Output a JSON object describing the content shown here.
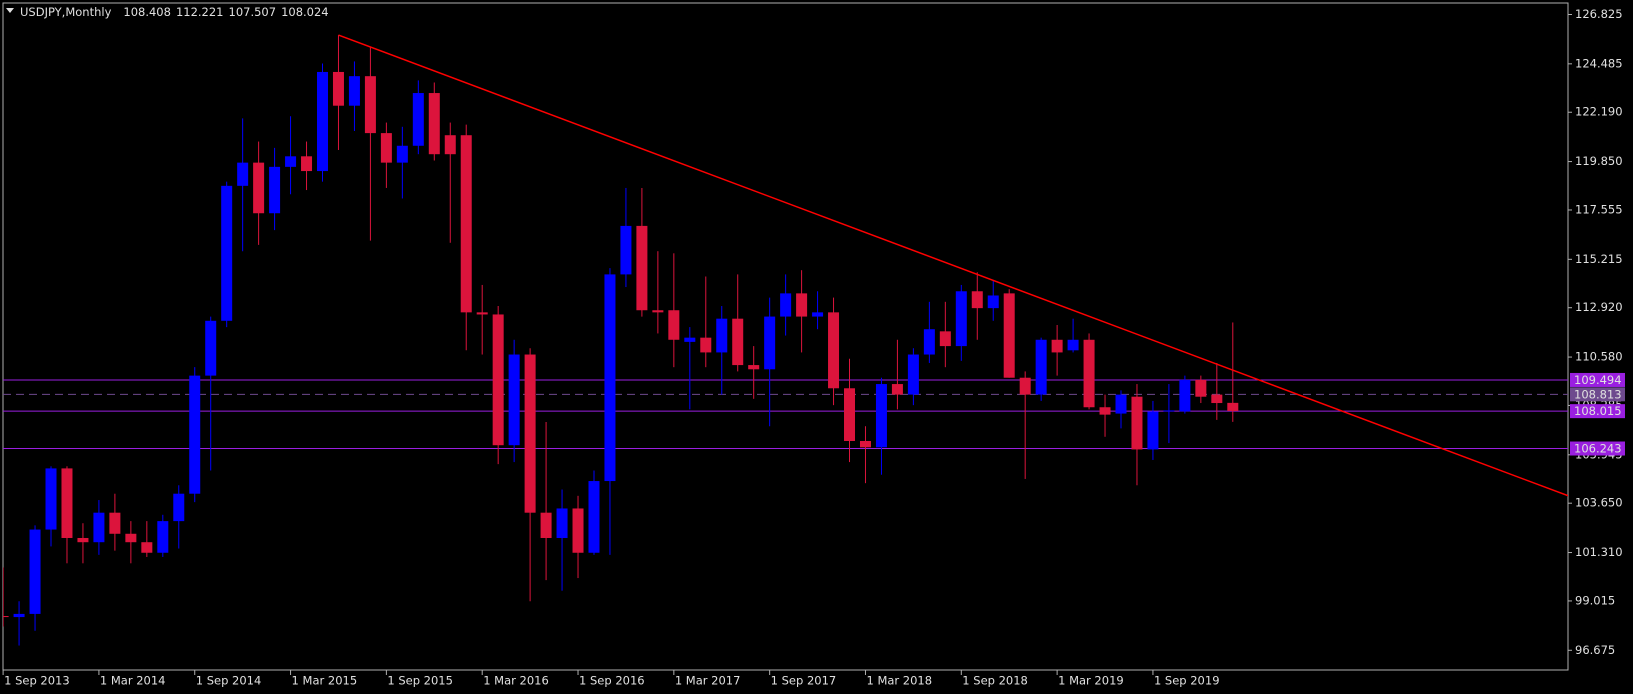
{
  "chart_data": {
    "type": "candlestick",
    "symbol": "USDJPY,Monthly",
    "ohlc": [
      108.408,
      112.221,
      107.507,
      108.024
    ],
    "categories": [
      "1 Sep 2013",
      null,
      null,
      null,
      null,
      null,
      "1 Mar 2014",
      null,
      null,
      null,
      null,
      null,
      "1 Sep 2014",
      null,
      null,
      null,
      null,
      null,
      "1 Mar 2015",
      null,
      null,
      null,
      null,
      null,
      "1 Sep 2015",
      null,
      null,
      null,
      null,
      null,
      "1 Mar 2016",
      null,
      null,
      null,
      null,
      null,
      "1 Sep 2016",
      null,
      null,
      null,
      null,
      null,
      "1 Mar 2017",
      null,
      null,
      null,
      null,
      null,
      "1 Sep 2017",
      null,
      null,
      null,
      null,
      null,
      "1 Mar 2018",
      null,
      null,
      null,
      null,
      null,
      "1 Sep 2018",
      null,
      null,
      null,
      null,
      null,
      "1 Mar 2019",
      null,
      null,
      null,
      null,
      null,
      "1 Sep 2019",
      null,
      null,
      null,
      null,
      null
    ],
    "open": [
      98.3,
      98.25,
      98.4,
      102.4,
      105.3,
      102.0,
      101.8,
      103.2,
      102.2,
      101.8,
      101.3,
      102.8,
      104.1,
      109.7,
      112.3,
      118.7,
      119.8,
      117.4,
      119.6,
      120.1,
      119.4,
      124.1,
      122.5,
      123.9,
      121.2,
      119.8,
      120.6,
      123.1,
      121.1,
      121.1,
      112.7,
      112.6,
      106.4,
      110.7,
      103.2,
      102.0,
      103.4,
      101.3,
      104.7,
      114.5,
      116.8,
      112.8,
      112.8,
      111.3,
      111.5,
      110.8,
      112.4,
      110.2,
      110.0,
      112.5,
      113.6,
      112.5,
      112.7,
      109.1,
      106.6,
      106.3,
      109.3,
      108.8,
      110.7,
      111.8,
      111.1,
      113.7,
      112.9,
      113.6,
      109.6,
      108.8,
      111.4,
      110.9,
      111.4,
      108.2,
      107.9,
      108.7,
      106.2,
      108.0,
      108.0,
      109.5,
      108.8,
      108.408
    ],
    "high": [
      100.6,
      99.0,
      102.6,
      105.4,
      105.4,
      102.7,
      103.8,
      104.1,
      102.8,
      102.8,
      103.1,
      104.5,
      110.1,
      112.5,
      118.9,
      121.9,
      120.8,
      120.5,
      122.0,
      120.8,
      124.5,
      125.85,
      124.6,
      125.3,
      121.7,
      121.5,
      123.7,
      123.6,
      121.7,
      121.6,
      114.0,
      113.0,
      111.4,
      111.0,
      107.5,
      104.3,
      104.0,
      105.2,
      114.8,
      118.6,
      118.6,
      115.6,
      115.5,
      112.0,
      114.4,
      113.0,
      114.5,
      111.1,
      113.4,
      114.5,
      114.7,
      113.7,
      113.4,
      110.5,
      107.3,
      109.6,
      111.4,
      111.0,
      113.2,
      113.2,
      114.0,
      114.6,
      114.2,
      113.8,
      109.9,
      111.5,
      112.1,
      112.4,
      111.7,
      108.8,
      109.0,
      109.3,
      108.5,
      109.3,
      109.7,
      109.7,
      110.3,
      112.221
    ],
    "low": [
      97.8,
      96.9,
      97.6,
      101.6,
      100.8,
      100.8,
      101.2,
      101.4,
      100.8,
      101.1,
      101.1,
      101.5,
      103.7,
      105.2,
      112.0,
      115.6,
      115.9,
      116.6,
      118.3,
      118.5,
      118.9,
      120.4,
      121.3,
      116.1,
      118.6,
      118.1,
      120.2,
      119.9,
      116.0,
      110.9,
      110.7,
      105.5,
      105.6,
      99.0,
      100.0,
      99.5,
      100.1,
      101.2,
      101.2,
      113.9,
      112.5,
      111.7,
      110.1,
      108.1,
      110.1,
      108.8,
      109.9,
      108.6,
      107.3,
      111.6,
      110.8,
      111.9,
      108.3,
      105.6,
      104.6,
      105.0,
      108.1,
      108.3,
      110.3,
      110.1,
      110.4,
      111.4,
      112.3,
      109.6,
      104.8,
      108.5,
      109.7,
      110.8,
      108.1,
      106.8,
      107.2,
      104.5,
      105.7,
      106.5,
      107.9,
      108.4,
      107.6,
      107.507
    ],
    "close": [
      98.25,
      98.4,
      102.4,
      105.3,
      102.0,
      101.8,
      103.2,
      102.2,
      101.8,
      101.3,
      102.8,
      104.1,
      109.7,
      112.3,
      118.7,
      119.8,
      117.4,
      119.6,
      120.1,
      119.4,
      124.1,
      122.5,
      123.9,
      121.2,
      119.8,
      120.6,
      123.1,
      120.2,
      120.2,
      112.7,
      112.6,
      106.4,
      110.7,
      103.2,
      102.0,
      103.4,
      101.3,
      104.7,
      114.5,
      116.8,
      112.8,
      112.7,
      111.4,
      111.5,
      110.8,
      112.4,
      110.2,
      110.0,
      112.5,
      113.6,
      112.5,
      112.7,
      109.1,
      106.6,
      106.3,
      109.3,
      108.8,
      110.7,
      111.9,
      111.1,
      113.7,
      112.9,
      113.5,
      109.6,
      108.8,
      111.4,
      110.8,
      111.4,
      108.2,
      107.85,
      108.8,
      106.2,
      108.0,
      108.05,
      109.5,
      108.7,
      108.4,
      108.024
    ],
    "up_color": "#0000ff",
    "down_color": "#dc143c",
    "ylim": [
      95.74,
      127.37
    ],
    "yticks": [
      {
        "value": 96.675,
        "label": "96.675"
      },
      {
        "value": 99.015,
        "label": "99.015"
      },
      {
        "value": 101.31,
        "label": "101.310"
      },
      {
        "value": 103.65,
        "label": "103.650"
      },
      {
        "value": 105.945,
        "label": "105.945"
      },
      {
        "value": 108.285,
        "label": "108.285"
      },
      {
        "value": 110.58,
        "label": "110.580"
      },
      {
        "value": 112.92,
        "label": "112.920"
      },
      {
        "value": 115.215,
        "label": "115.215"
      },
      {
        "value": 117.555,
        "label": "117.555"
      },
      {
        "value": 119.85,
        "label": "119.850"
      },
      {
        "value": 122.19,
        "label": "122.190"
      },
      {
        "value": 124.485,
        "label": "124.485"
      },
      {
        "value": 126.825,
        "label": "126.825"
      }
    ],
    "levels": [
      {
        "value": 109.494,
        "color": "#9a1fe0",
        "dashed": false
      },
      {
        "value": 108.813,
        "color": "#6e4a8e",
        "dashed": true
      },
      {
        "value": 108.015,
        "color": "#9a1fe0",
        "dashed": false
      },
      {
        "value": 106.243,
        "color": "#9a1fe0",
        "dashed": false
      }
    ],
    "trendline": {
      "color": "#ff0000",
      "x": [
        21,
        98.04
      ],
      "values": [
        125.85,
        103.99
      ]
    }
  }
}
